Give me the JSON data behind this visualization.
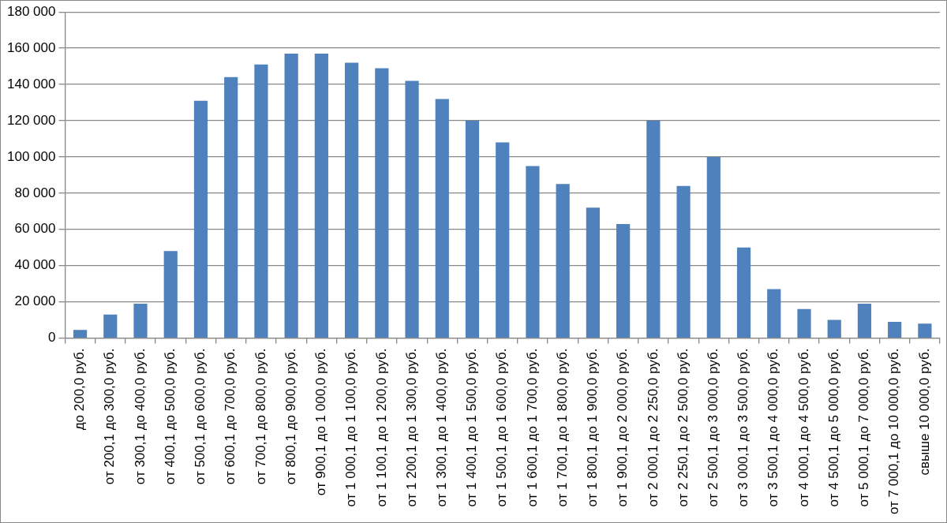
{
  "chart_data": {
    "type": "bar",
    "categories": [
      "до 200,0 руб.",
      "от 200,1 до 300,0 руб.",
      "от 300,1 до 400,0 руб.",
      "от 400,1 до 500,0 руб.",
      "от 500,1 до 600,0 руб.",
      "от 600,1 до 700,0 руб.",
      "от 700,1 до 800,0 руб.",
      "от 800,1 до 900,0 руб.",
      "от 900,1 до 1 000,0 руб.",
      "от 1 000,1 до 1 100,0 руб.",
      "от 1 100,1 до 1 200,0 руб.",
      "от 1 200,1 до 1 300,0 руб.",
      "от 1 300,1 до 1 400,0 руб.",
      "от 1 400,1 до 1 500,0 руб.",
      "от 1 500,1 до 1 600,0 руб.",
      "от 1 600,1 до 1 700,0 руб.",
      "от 1 700,1 до 1 800,0 руб.",
      "от 1 800,1 до 1 900,0 руб.",
      "от 1 900,1 до 2 000,0 руб.",
      "от 2 000,1 до 2 250,0 руб.",
      "от 2 250,1 до 2 500,0 руб.",
      "от 2 500,1 до 3 000,0 руб.",
      "от 3 000,1 до 3 500,0 руб.",
      "от 3 500,1 до 4 000,0 руб.",
      "от 4 000,1 до 4 500,0 руб.",
      "от 4 500,1 до 5 000,0 руб.",
      "от 5 000,1 до 7 000,0 руб.",
      "от 7 000,1 до 10 000,0 руб.",
      "свыше 10 000,0 руб."
    ],
    "values": [
      4500,
      13000,
      19000,
      48000,
      131000,
      144000,
      151000,
      157000,
      157000,
      152000,
      149000,
      142000,
      132000,
      120000,
      108000,
      95000,
      85000,
      72000,
      63000,
      120000,
      84000,
      100000,
      50000,
      27000,
      16000,
      10000,
      19000,
      9000,
      8000
    ],
    "color": "#4f81bd",
    "ylim": [
      0,
      180000
    ],
    "yticks": [
      {
        "value": 0,
        "label": "0"
      },
      {
        "value": 20000,
        "label": "20 000"
      },
      {
        "value": 40000,
        "label": "40 000"
      },
      {
        "value": 60000,
        "label": "60 000"
      },
      {
        "value": 80000,
        "label": "80 000"
      },
      {
        "value": 100000,
        "label": "100 000"
      },
      {
        "value": 120000,
        "label": "120 000"
      },
      {
        "value": 140000,
        "label": "140 000"
      },
      {
        "value": 160000,
        "label": "160 000"
      },
      {
        "value": 180000,
        "label": "180 000"
      }
    ],
    "grid": "y"
  }
}
